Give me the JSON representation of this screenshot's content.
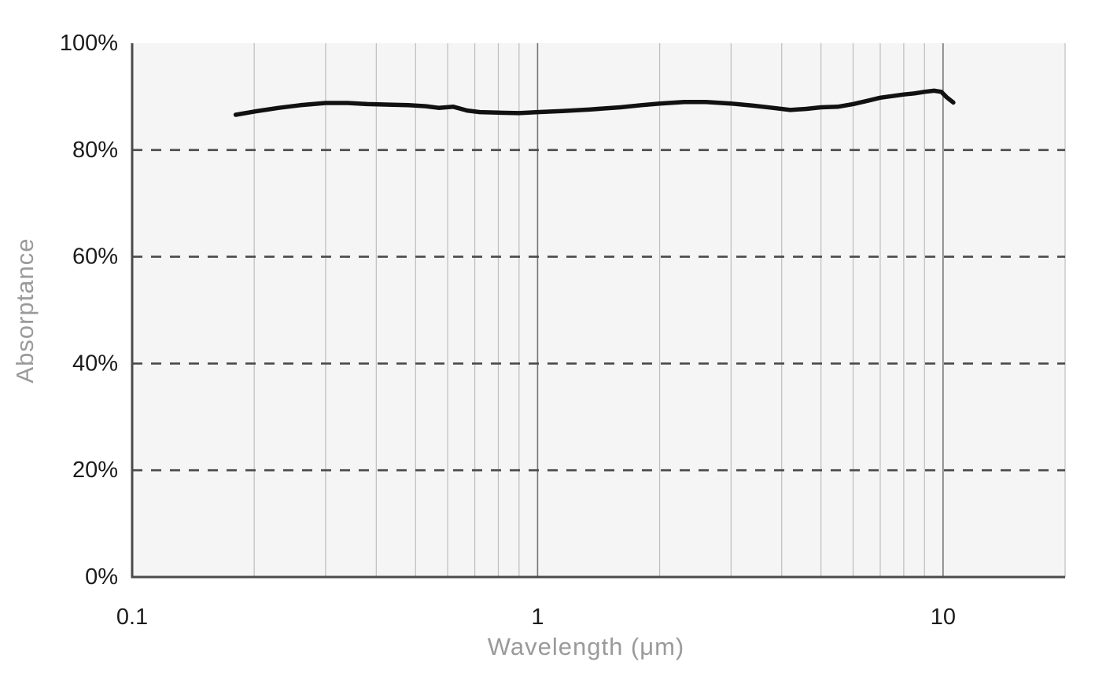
{
  "chart_data": {
    "type": "line",
    "title": "",
    "xlabel": "Wavelength (μm)",
    "ylabel": "Absorptance",
    "x_scale": "log",
    "xlim": [
      0.1,
      20
    ],
    "ylim": [
      0,
      100
    ],
    "grid": "on",
    "legend": "none",
    "x_ticks": [
      {
        "value": 0.1,
        "label": "0.1"
      },
      {
        "value": 1,
        "label": "1"
      },
      {
        "value": 10,
        "label": "10"
      }
    ],
    "y_ticks": [
      {
        "value": 0,
        "label": "0%"
      },
      {
        "value": 20,
        "label": "20%"
      },
      {
        "value": 40,
        "label": "40%"
      },
      {
        "value": 60,
        "label": "60%"
      },
      {
        "value": 80,
        "label": "80%"
      },
      {
        "value": 100,
        "label": "100%"
      }
    ],
    "x_minor_gridlines": [
      0.2,
      0.3,
      0.4,
      0.5,
      0.6,
      0.7,
      0.8,
      0.9,
      2,
      3,
      4,
      5,
      6,
      7,
      8,
      9,
      20
    ],
    "x_major_gridlines": [
      1,
      10
    ],
    "y_dashed_gridlines": [
      20,
      40,
      60,
      80
    ],
    "series": [
      {
        "name": "Absorptance",
        "points": [
          [
            0.18,
            86.6
          ],
          [
            0.2,
            87.2
          ],
          [
            0.23,
            87.9
          ],
          [
            0.26,
            88.4
          ],
          [
            0.3,
            88.8
          ],
          [
            0.34,
            88.8
          ],
          [
            0.38,
            88.6
          ],
          [
            0.43,
            88.5
          ],
          [
            0.48,
            88.4
          ],
          [
            0.53,
            88.2
          ],
          [
            0.57,
            87.9
          ],
          [
            0.62,
            88.1
          ],
          [
            0.67,
            87.4
          ],
          [
            0.72,
            87.1
          ],
          [
            0.8,
            87.0
          ],
          [
            0.9,
            86.9
          ],
          [
            1.0,
            87.1
          ],
          [
            1.15,
            87.3
          ],
          [
            1.35,
            87.6
          ],
          [
            1.6,
            88.0
          ],
          [
            1.8,
            88.4
          ],
          [
            2.0,
            88.7
          ],
          [
            2.3,
            89.0
          ],
          [
            2.6,
            89.0
          ],
          [
            3.0,
            88.7
          ],
          [
            3.4,
            88.3
          ],
          [
            3.8,
            87.9
          ],
          [
            4.2,
            87.5
          ],
          [
            4.6,
            87.7
          ],
          [
            5.0,
            88.0
          ],
          [
            5.5,
            88.1
          ],
          [
            6.0,
            88.6
          ],
          [
            6.5,
            89.2
          ],
          [
            7.0,
            89.8
          ],
          [
            7.5,
            90.1
          ],
          [
            8.0,
            90.4
          ],
          [
            8.5,
            90.6
          ],
          [
            9.0,
            90.9
          ],
          [
            9.5,
            91.1
          ],
          [
            9.9,
            90.9
          ],
          [
            10.2,
            89.9
          ],
          [
            10.6,
            88.9
          ]
        ]
      }
    ]
  },
  "colors": {
    "page_bg": "#ffffff",
    "plot_bg": "#f5f5f5",
    "grid_minor": "#bdbdbd",
    "grid_major": "#757575",
    "grid_dashed": "#4a4a4a",
    "axis_line": "#4a4a4a",
    "series_line": "#111111",
    "tick_text": "#1c1c1c",
    "axis_title_text": "#9a9a9a"
  }
}
